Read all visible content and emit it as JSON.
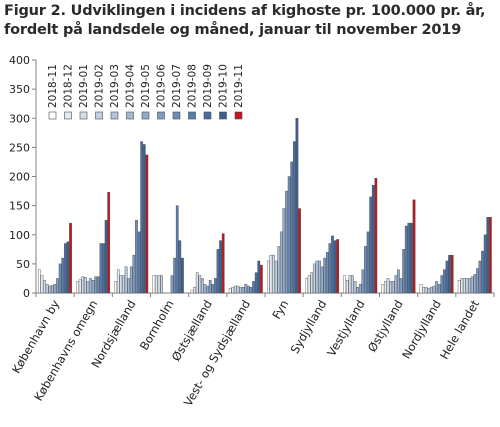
{
  "title_line1": "Figur 2. Udviklingen i incidens af kighoste pr. 100.000 pr. år,",
  "title_line2": "fordelt på landsdele og måned, januar til november 2019",
  "chart_data": {
    "type": "bar",
    "title": "Figur 2. Udviklingen i incidens af kighoste pr. 100.000 pr. år, fordelt på landsdele og måned, januar til november 2019",
    "xlabel": "",
    "ylabel": "",
    "ylim": [
      0,
      400
    ],
    "yticks": [
      0,
      50,
      100,
      150,
      200,
      250,
      300,
      350,
      400
    ],
    "grid": false,
    "legend_position": "top",
    "series_names": [
      "2018-11",
      "2018-12",
      "2019-01",
      "2019-02",
      "2019-03",
      "2019-04",
      "2019-05",
      "2019-06",
      "2019-07",
      "2019-08",
      "2019-09",
      "2019-10",
      "2019-11"
    ],
    "series_colors": [
      "#ffffff",
      "#e4eaf2",
      "#d3deea",
      "#c3d2e3",
      "#b2c5dc",
      "#a2b8d4",
      "#91abcd",
      "#7f9dc4",
      "#6c8db9",
      "#5a7dae",
      "#4a6e9f",
      "#3b5f8e",
      "#c0171e"
    ],
    "categories": [
      {
        "name": "København by",
        "values": [
          40,
          30,
          22,
          15,
          12,
          13,
          15,
          25,
          50,
          60,
          85,
          88,
          120
        ]
      },
      {
        "name": "Københavns omegn",
        "values": [
          20,
          23,
          28,
          27,
          20,
          25,
          22,
          28,
          28,
          85,
          85,
          125,
          173
        ]
      },
      {
        "name": "Nordsjælland",
        "values": [
          20,
          40,
          30,
          30,
          45,
          25,
          45,
          65,
          125,
          105,
          260,
          255,
          237
        ]
      },
      {
        "name": "Bornholm",
        "values": [
          30,
          30,
          30,
          30,
          0,
          0,
          0,
          30,
          60,
          150,
          90,
          60,
          0
        ]
      },
      {
        "name": "Østsjælland",
        "values": [
          5,
          10,
          35,
          30,
          25,
          15,
          12,
          22,
          15,
          25,
          75,
          90,
          102
        ]
      },
      {
        "name": "Vest- og Sydsjælland",
        "values": [
          8,
          10,
          12,
          12,
          10,
          10,
          15,
          12,
          10,
          20,
          35,
          55,
          48
        ]
      },
      {
        "name": "Fyn",
        "values": [
          55,
          65,
          65,
          55,
          80,
          105,
          145,
          175,
          200,
          225,
          260,
          300,
          145
        ]
      },
      {
        "name": "Sydjylland",
        "values": [
          25,
          30,
          35,
          50,
          55,
          55,
          45,
          60,
          70,
          85,
          98,
          90,
          92
        ]
      },
      {
        "name": "Vestjylland",
        "values": [
          30,
          22,
          30,
          30,
          20,
          10,
          15,
          40,
          80,
          105,
          165,
          185,
          197
        ]
      },
      {
        "name": "Østjylland",
        "values": [
          15,
          20,
          25,
          20,
          20,
          30,
          40,
          25,
          75,
          115,
          120,
          120,
          160
        ]
      },
      {
        "name": "Nordjylland",
        "values": [
          15,
          10,
          10,
          8,
          10,
          12,
          20,
          15,
          30,
          40,
          55,
          65,
          65
        ]
      },
      {
        "name": "Hele landet",
        "values": [
          22,
          25,
          25,
          25,
          25,
          28,
          32,
          42,
          55,
          72,
          100,
          130,
          130
        ]
      }
    ]
  }
}
